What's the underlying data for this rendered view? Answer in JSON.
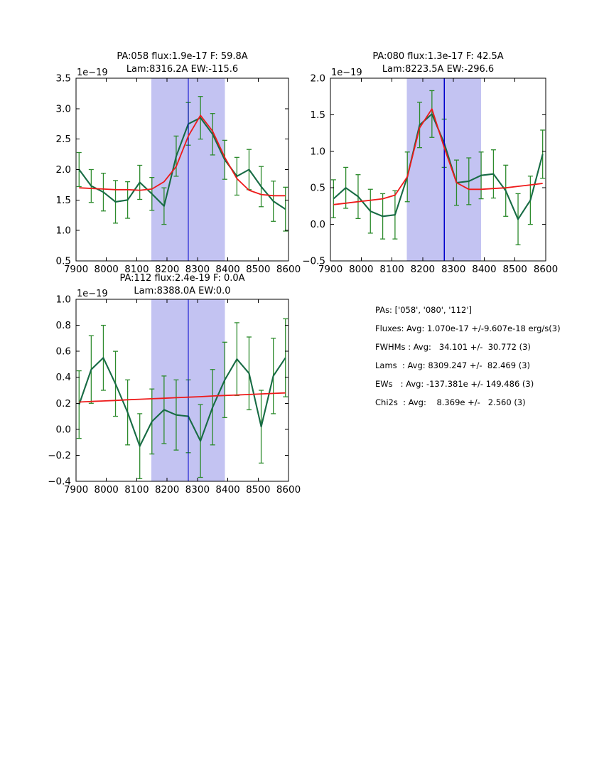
{
  "figure": {
    "background": "#ffffff",
    "colors": {
      "band": "#c3c3f2",
      "vline": "#0000cc",
      "spectrum": "#176b44",
      "errorbar": "#2d8b2d",
      "fit": "#ee1a1a",
      "frame": "#000000"
    }
  },
  "chart_data": [
    {
      "type": "line",
      "title": "PA:058 flux:1.9e-17 F: 59.8A",
      "subtitle": "Lam:8316.2A EW:-115.6",
      "offset_label": "1e−19",
      "xlim": [
        7900,
        8600
      ],
      "ylim": [
        0.5,
        3.5
      ],
      "xticks": [
        7900,
        8000,
        8100,
        8200,
        8300,
        8400,
        8500,
        8600
      ],
      "yticks": [
        0.5,
        1.0,
        1.5,
        2.0,
        2.5,
        3.0,
        3.5
      ],
      "ytick_labels": [
        "0.5",
        "1.0",
        "1.5",
        "2.0",
        "2.5",
        "3.0",
        "3.5"
      ],
      "band": [
        8148,
        8390
      ],
      "vline": 8270,
      "x": [
        7910,
        7950,
        7990,
        8030,
        8070,
        8110,
        8150,
        8190,
        8230,
        8270,
        8310,
        8350,
        8390,
        8430,
        8470,
        8510,
        8550,
        8590
      ],
      "series": [
        {
          "name": "spectrum",
          "values": [
            2.0,
            1.73,
            1.63,
            1.47,
            1.5,
            1.79,
            1.6,
            1.4,
            2.22,
            2.75,
            2.85,
            2.58,
            2.16,
            1.89,
            2.0,
            1.72,
            1.48,
            1.35
          ],
          "errors": [
            0.28,
            0.27,
            0.31,
            0.35,
            0.3,
            0.28,
            0.27,
            0.3,
            0.33,
            0.35,
            0.35,
            0.34,
            0.32,
            0.31,
            0.33,
            0.33,
            0.33,
            0.36
          ]
        },
        {
          "name": "fit",
          "values": [
            1.7,
            1.69,
            1.68,
            1.67,
            1.67,
            1.66,
            1.68,
            1.8,
            2.05,
            2.55,
            2.89,
            2.63,
            2.2,
            1.85,
            1.66,
            1.59,
            1.57,
            1.57
          ]
        }
      ]
    },
    {
      "type": "line",
      "title": "PA:080 flux:1.3e-17 F: 42.5A",
      "subtitle": "Lam:8223.5A EW:-296.6",
      "offset_label": "1e−19",
      "xlim": [
        7900,
        8600
      ],
      "ylim": [
        -0.5,
        2.0
      ],
      "xticks": [
        7900,
        8000,
        8100,
        8200,
        8300,
        8400,
        8500,
        8600
      ],
      "yticks": [
        -0.5,
        0.0,
        0.5,
        1.0,
        1.5,
        2.0
      ],
      "ytick_labels": [
        "−0.5",
        "0.0",
        "0.5",
        "1.0",
        "1.5",
        "2.0"
      ],
      "band": [
        8148,
        8390
      ],
      "vline": 8270,
      "x": [
        7910,
        7950,
        7990,
        8030,
        8070,
        8110,
        8150,
        8190,
        8230,
        8270,
        8310,
        8350,
        8390,
        8430,
        8470,
        8510,
        8550,
        8590
      ],
      "series": [
        {
          "name": "spectrum",
          "values": [
            0.35,
            0.5,
            0.38,
            0.18,
            0.11,
            0.13,
            0.65,
            1.36,
            1.51,
            1.11,
            0.57,
            0.59,
            0.67,
            0.69,
            0.46,
            0.07,
            0.33,
            0.96
          ],
          "errors": [
            0.26,
            0.28,
            0.3,
            0.3,
            0.31,
            0.33,
            0.34,
            0.31,
            0.32,
            0.33,
            0.31,
            0.32,
            0.32,
            0.33,
            0.35,
            0.35,
            0.33,
            0.33
          ]
        },
        {
          "name": "fit",
          "values": [
            0.27,
            0.29,
            0.31,
            0.33,
            0.35,
            0.4,
            0.65,
            1.32,
            1.58,
            1.05,
            0.57,
            0.48,
            0.48,
            0.49,
            0.5,
            0.52,
            0.54,
            0.56
          ]
        }
      ]
    },
    {
      "type": "line",
      "title": "PA:112 flux:2.4e-19 F: 0.0A",
      "subtitle": "Lam:8388.0A EW:0.0",
      "offset_label": "1e−19",
      "xlim": [
        7900,
        8600
      ],
      "ylim": [
        -0.4,
        1.0
      ],
      "xticks": [
        7900,
        8000,
        8100,
        8200,
        8300,
        8400,
        8500,
        8600
      ],
      "yticks": [
        -0.4,
        -0.2,
        0.0,
        0.2,
        0.4,
        0.6,
        0.8,
        1.0
      ],
      "ytick_labels": [
        "−0.4",
        "−0.2",
        "0.0",
        "0.2",
        "0.4",
        "0.6",
        "0.8",
        "1.0"
      ],
      "band": [
        8148,
        8390
      ],
      "vline": 8270,
      "x": [
        7910,
        7950,
        7990,
        8030,
        8070,
        8110,
        8150,
        8190,
        8230,
        8270,
        8310,
        8350,
        8390,
        8430,
        8470,
        8510,
        8550,
        8590
      ],
      "series": [
        {
          "name": "spectrum",
          "values": [
            0.19,
            0.46,
            0.55,
            0.35,
            0.13,
            -0.13,
            0.06,
            0.15,
            0.11,
            0.1,
            -0.09,
            0.17,
            0.38,
            0.54,
            0.43,
            0.02,
            0.41,
            0.55
          ],
          "errors": [
            0.26,
            0.26,
            0.25,
            0.25,
            0.25,
            0.25,
            0.25,
            0.26,
            0.27,
            0.28,
            0.28,
            0.29,
            0.29,
            0.28,
            0.28,
            0.28,
            0.29,
            0.3
          ]
        },
        {
          "name": "fit",
          "values": [
            0.21,
            0.214,
            0.218,
            0.222,
            0.227,
            0.231,
            0.235,
            0.239,
            0.243,
            0.247,
            0.251,
            0.256,
            0.26,
            0.264,
            0.268,
            0.272,
            0.276,
            0.28
          ]
        }
      ]
    }
  ],
  "stats_panel": {
    "lines": [
      "PAs: ['058', '080', '112']",
      "Fluxes: Avg: 1.070e-17 +/-9.607e-18 erg/s(3)",
      "FWHMs : Avg:   34.101 +/-  30.772 (3)",
      "Lams  : Avg: 8309.247 +/-  82.469 (3)",
      "EWs   : Avg: -137.381e +/- 149.486 (3)",
      "Chi2s  : Avg:    8.369e +/-   2.560 (3)"
    ]
  }
}
